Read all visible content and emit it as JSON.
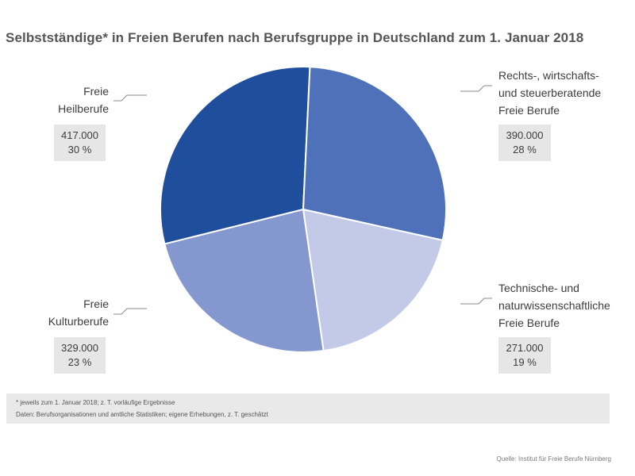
{
  "chart_data": {
    "type": "pie",
    "title": "Selbstständige* in Freien Berufen nach Berufsgruppe in Deutschland zum 1. Januar 2018",
    "slices": [
      {
        "label_lines": [
          "Freie",
          "Heilberufe"
        ],
        "value": 417000,
        "value_text": "417.000",
        "percent_text": "30 %",
        "color": "#1f4e9c"
      },
      {
        "label_lines": [
          "Rechts-, wirtschafts-",
          "und steuerberatende",
          "Freie Berufe"
        ],
        "value": 390000,
        "value_text": "390.000",
        "percent_text": "28 %",
        "color": "#4f71b9"
      },
      {
        "label_lines": [
          "Technische- und",
          "naturwissenschaftliche",
          "Freie Berufe"
        ],
        "value": 271000,
        "value_text": "271.000",
        "percent_text": "19 %",
        "color": "#c3cae8"
      },
      {
        "label_lines": [
          "Freie",
          "Kulturberufe"
        ],
        "value": 329000,
        "value_text": "329.000",
        "percent_text": "23 %",
        "color": "#8497cf"
      }
    ]
  },
  "footnotes": {
    "line1": "* jeweils zum 1. Januar 2018; z. T. vorläufige Ergebnisse",
    "line2": "Daten: Berufsorganisationen und amtliche Statistiken; eigene Erhebungen, z. T. geschätzt"
  },
  "source": "Quelle: Institut für Freie Berufe Nürnberg"
}
